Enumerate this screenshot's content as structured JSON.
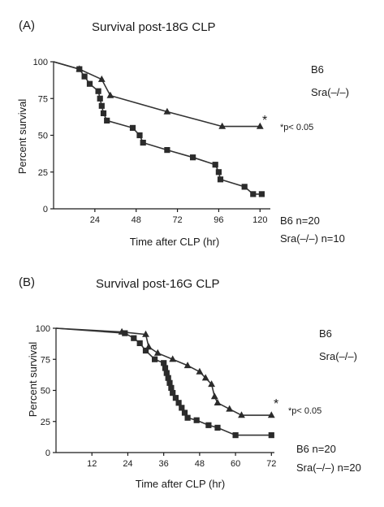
{
  "chart_data": [
    {
      "panel": "(A)",
      "type": "line",
      "title": "Survival post-18G CLP",
      "xlabel": "Time after CLP (hr)",
      "ylabel": "Percent survival",
      "xlim": [
        0,
        126
      ],
      "ylim": [
        0,
        100
      ],
      "xticks": [
        "24",
        "48",
        "72",
        "96",
        "120"
      ],
      "xtick_values": [
        24,
        48,
        72,
        96,
        120
      ],
      "yticks": [
        "0",
        "25",
        "50",
        "75",
        "100"
      ],
      "ytick_values": [
        0,
        25,
        50,
        75,
        100
      ],
      "legend": [
        "B6",
        "Sra(–/–)"
      ],
      "annotation": "*p< 0.05",
      "star": "*",
      "n_labels": [
        "B6 n=20",
        "Sra(–/–) n=10"
      ],
      "series": [
        {
          "marker": "triangle",
          "points": [
            [
              0,
              100
            ],
            [
              15,
              95
            ],
            [
              28,
              88
            ],
            [
              33,
              77
            ],
            [
              66,
              66
            ],
            [
              98,
              56
            ],
            [
              120,
              56
            ]
          ]
        },
        {
          "marker": "square",
          "points": [
            [
              0,
              100
            ],
            [
              15,
              95
            ],
            [
              18,
              90
            ],
            [
              21,
              85
            ],
            [
              26,
              80
            ],
            [
              27,
              75
            ],
            [
              28,
              70
            ],
            [
              29,
              65
            ],
            [
              31,
              60
            ],
            [
              46,
              55
            ],
            [
              50,
              50
            ],
            [
              52,
              45
            ],
            [
              66,
              40
            ],
            [
              81,
              35
            ],
            [
              94,
              30
            ],
            [
              96,
              25
            ],
            [
              97,
              20
            ],
            [
              111,
              15
            ],
            [
              116,
              10
            ],
            [
              121,
              10
            ]
          ]
        }
      ]
    },
    {
      "panel": "(B)",
      "type": "line",
      "title": "Survival post-16G CLP",
      "xlabel": "Time after CLP (hr)",
      "ylabel": "Percent survival",
      "xlim": [
        0,
        73
      ],
      "ylim": [
        0,
        100
      ],
      "xticks": [
        "12",
        "24",
        "36",
        "48",
        "60",
        "72"
      ],
      "xtick_values": [
        12,
        24,
        36,
        48,
        60,
        72
      ],
      "yticks": [
        "0",
        "25",
        "50",
        "75",
        "100"
      ],
      "ytick_values": [
        0,
        25,
        50,
        75,
        100
      ],
      "legend": [
        "B6",
        "Sra(–/–)"
      ],
      "annotation": "*p< 0.05",
      "star": "*",
      "n_labels": [
        "B6 n=20",
        "Sra(–/–) n=20"
      ],
      "series": [
        {
          "marker": "triangle",
          "points": [
            [
              0,
              100
            ],
            [
              22,
              97
            ],
            [
              30,
              95
            ],
            [
              31,
              85
            ],
            [
              34,
              80
            ],
            [
              39,
              75
            ],
            [
              44,
              70
            ],
            [
              48,
              65
            ],
            [
              50,
              60
            ],
            [
              52,
              55
            ],
            [
              53,
              45
            ],
            [
              54,
              40
            ],
            [
              58,
              35
            ],
            [
              62,
              30
            ],
            [
              72,
              30
            ]
          ]
        },
        {
          "marker": "square",
          "points": [
            [
              0,
              100
            ],
            [
              23,
              96
            ],
            [
              26,
              92
            ],
            [
              28,
              88
            ],
            [
              30,
              82
            ],
            [
              33,
              75
            ],
            [
              36,
              72
            ],
            [
              36.5,
              68
            ],
            [
              37,
              64
            ],
            [
              37.5,
              60
            ],
            [
              38,
              56
            ],
            [
              38.5,
              52
            ],
            [
              39,
              48
            ],
            [
              40,
              44
            ],
            [
              41,
              40
            ],
            [
              42,
              36
            ],
            [
              43,
              32
            ],
            [
              44,
              28
            ],
            [
              47,
              26
            ],
            [
              51,
              22
            ],
            [
              54,
              20
            ],
            [
              60,
              14
            ],
            [
              72,
              14
            ]
          ]
        }
      ]
    }
  ]
}
